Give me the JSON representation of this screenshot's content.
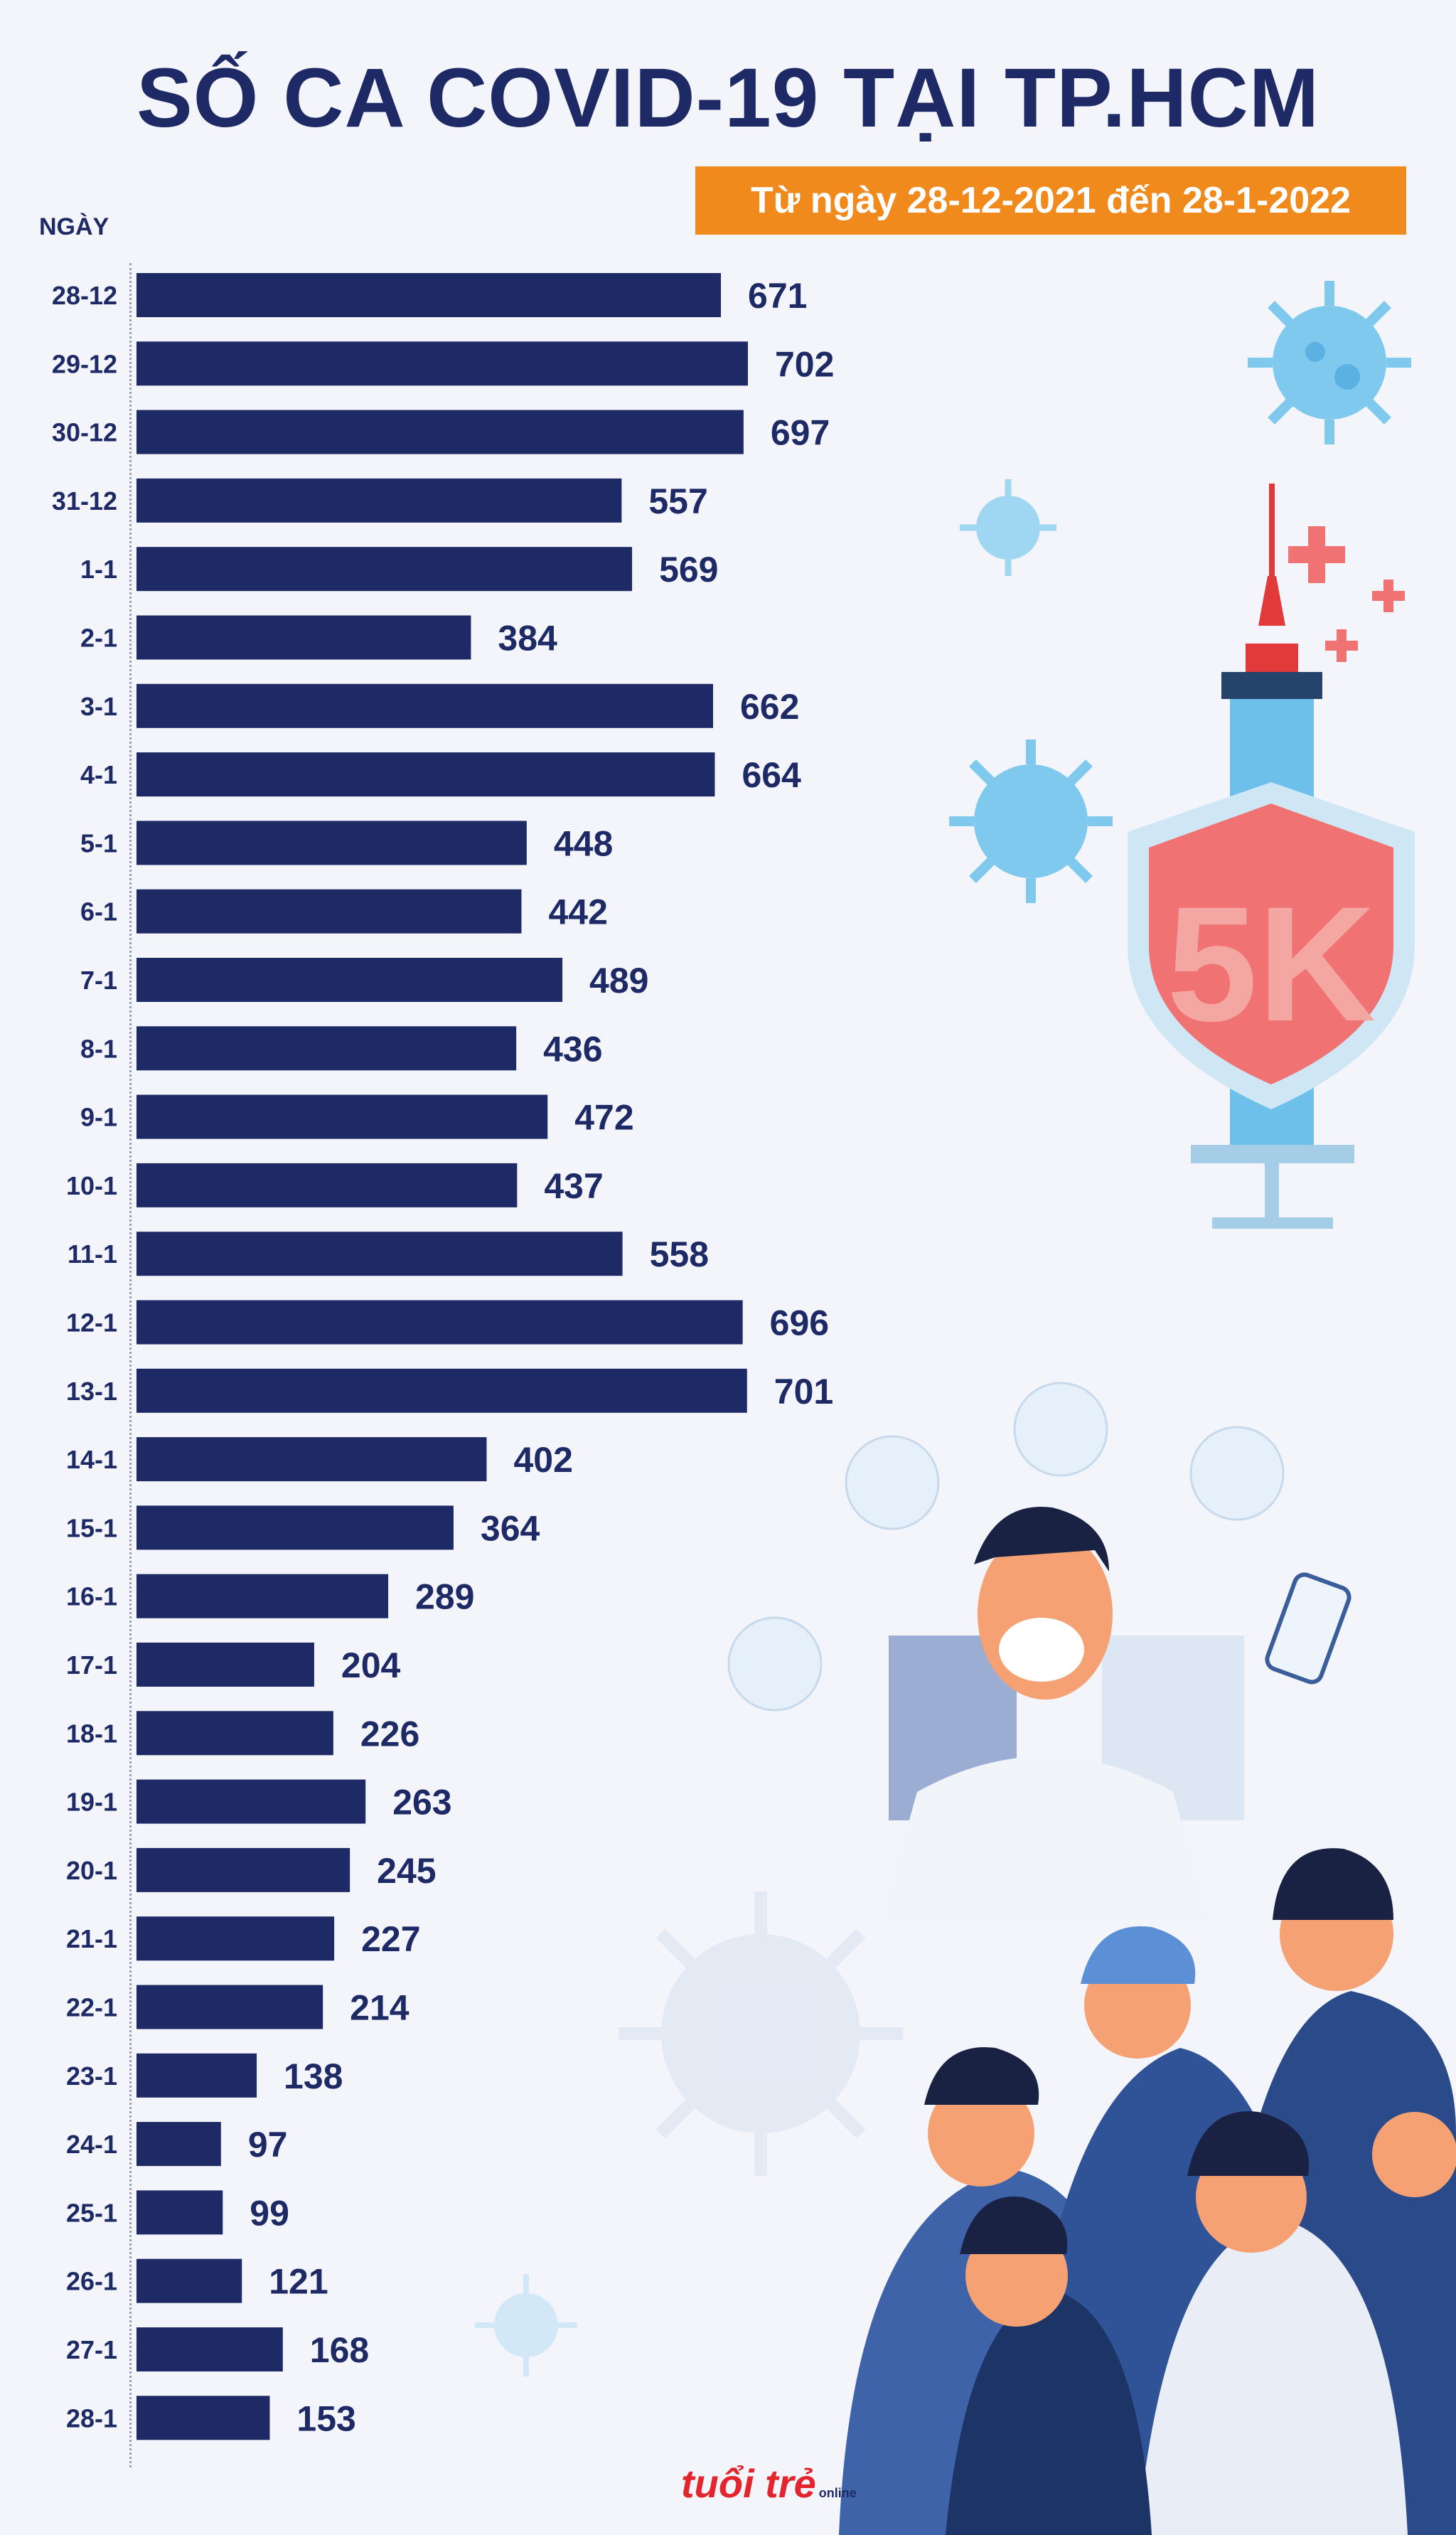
{
  "header": {
    "title": "SỐ CA COVID-19 TẠI TP.HCM",
    "subtitle": "Từ ngày 28-12-2021 đến 28-1-2022"
  },
  "chart_data": {
    "type": "bar",
    "orientation": "horizontal",
    "title": "SỐ CA COVID-19 TẠI TP.HCM",
    "subtitle": "Từ ngày 28-12-2021 đến 28-1-2022",
    "ylabel": "NGÀY",
    "xlabel": "",
    "xlim": [
      0,
      702
    ],
    "categories": [
      "28-12",
      "29-12",
      "30-12",
      "31-12",
      "1-1",
      "2-1",
      "3-1",
      "4-1",
      "5-1",
      "6-1",
      "7-1",
      "8-1",
      "9-1",
      "10-1",
      "11-1",
      "12-1",
      "13-1",
      "14-1",
      "15-1",
      "16-1",
      "17-1",
      "18-1",
      "19-1",
      "20-1",
      "21-1",
      "22-1",
      "23-1",
      "24-1",
      "25-1",
      "26-1",
      "27-1",
      "28-1"
    ],
    "values": [
      671,
      702,
      697,
      557,
      569,
      384,
      662,
      664,
      448,
      442,
      489,
      436,
      472,
      437,
      558,
      696,
      701,
      402,
      364,
      289,
      204,
      226,
      263,
      245,
      227,
      214,
      138,
      97,
      99,
      121,
      168,
      153
    ],
    "bar_color": "#1d2a66",
    "grid": false,
    "legend": "none"
  },
  "shield_text": "5K",
  "logo": {
    "main": "tuổi trẻ",
    "sub": "online"
  },
  "colors": {
    "navy": "#1d2a66",
    "orange": "#f08a1d",
    "virus": "#7fc8ee",
    "shield": "#f07272"
  }
}
